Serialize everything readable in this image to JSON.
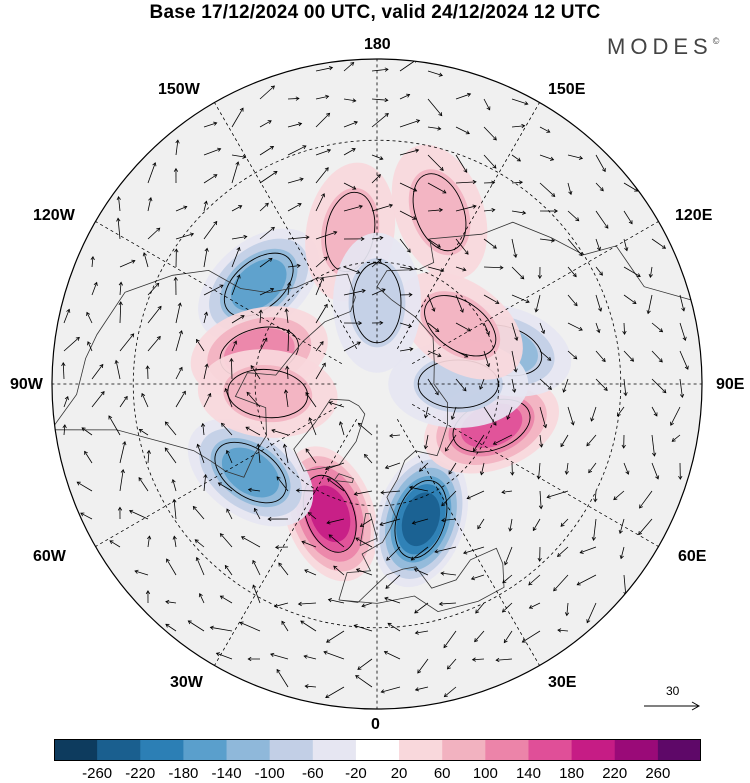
{
  "title": "Base 17/12/2024 00 UTC, valid 24/12/2024 12 UTC",
  "brand": "MODES",
  "brand_mark": "©",
  "map_labels": {
    "top": "180",
    "bottom": "0",
    "left": "90W",
    "right": "90E",
    "upper_left_1": "150W",
    "upper_left_2": "120W",
    "upper_right_1": "150E",
    "upper_right_2": "120E",
    "lower_left_1": "60W",
    "lower_left_2": "30W",
    "lower_right_1": "60E",
    "lower_right_2": "30E"
  },
  "reference_vector": {
    "label": "30"
  },
  "colorbar": {
    "ticks": [
      "-260",
      "-220",
      "-180",
      "-140",
      "-100",
      "-60",
      "-20",
      "20",
      "60",
      "100",
      "140",
      "180",
      "220",
      "260"
    ],
    "colors": [
      "#0d3b5e",
      "#1a5f8f",
      "#2c7fb5",
      "#5a9fcc",
      "#8fb8da",
      "#c2cfe6",
      "#e6e6f2",
      "#ffffff",
      "#f9d8dc",
      "#f2b2c0",
      "#ec84a9",
      "#e04f98",
      "#c61c85",
      "#9a0a78",
      "#5e0868"
    ]
  },
  "anomalies": [
    {
      "name": "n-atlantic-high",
      "value": 190,
      "lon": -20,
      "lat": 56
    },
    {
      "name": "europe-low",
      "value": -220,
      "lon": 18,
      "lat": 55
    },
    {
      "name": "w-atlantic-low",
      "value": -170,
      "lon": -55,
      "lat": 52
    },
    {
      "name": "siberia-high",
      "value": 150,
      "lon": 70,
      "lat": 60
    },
    {
      "name": "central-asia-low",
      "value": -130,
      "lon": 105,
      "lat": 58
    },
    {
      "name": "w-siberia-low",
      "value": -80,
      "lon": 90,
      "lat": 70
    },
    {
      "name": "e-siberia-high",
      "value": 80,
      "lon": 125,
      "lat": 65
    },
    {
      "name": "alaska-low",
      "value": -160,
      "lon": -130,
      "lat": 52
    },
    {
      "name": "n-canada-high",
      "value": 110,
      "lon": -105,
      "lat": 60
    },
    {
      "name": "hudson-high",
      "value": 90,
      "lon": -85,
      "lat": 63
    },
    {
      "name": "bering-high",
      "value": 70,
      "lon": -170,
      "lat": 52
    },
    {
      "name": "pacific-high",
      "value": 60,
      "lon": 160,
      "lat": 45
    },
    {
      "name": "arctic-low",
      "value": -60,
      "lon": 180,
      "lat": 70
    }
  ]
}
